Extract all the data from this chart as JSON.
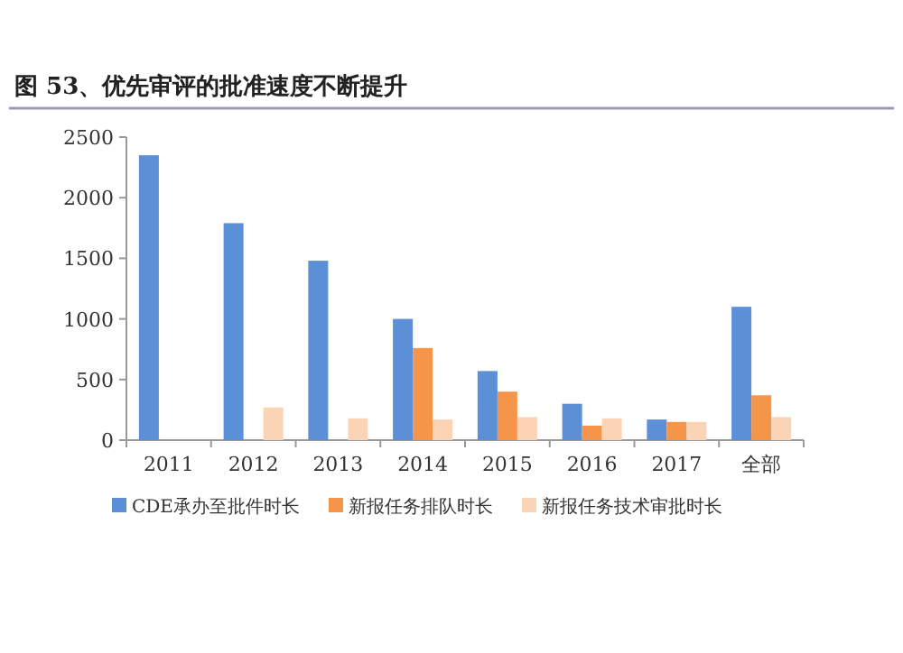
{
  "chart_data": {
    "type": "bar",
    "title": "图 53、优先审评的批准速度不断提升",
    "categories": [
      "2011",
      "2012",
      "2013",
      "2014",
      "2015",
      "2016",
      "2017",
      "全部"
    ],
    "series": [
      {
        "name": "CDE承办至批件时长",
        "color": "#5b8fd6",
        "values": [
          2350,
          1790,
          1480,
          1000,
          570,
          300,
          170,
          1100
        ]
      },
      {
        "name": "新报任务排队时长",
        "color": "#f5954a",
        "values": [
          null,
          null,
          null,
          760,
          400,
          120,
          150,
          370
        ]
      },
      {
        "name": "新报任务技术审批时长",
        "color": "#fbd3b5",
        "values": [
          null,
          270,
          180,
          170,
          190,
          180,
          150,
          190
        ]
      }
    ],
    "ylim": [
      0,
      2500
    ],
    "yticks": [
      0,
      500,
      1000,
      1500,
      2000,
      2500
    ],
    "legend": "bottom"
  }
}
